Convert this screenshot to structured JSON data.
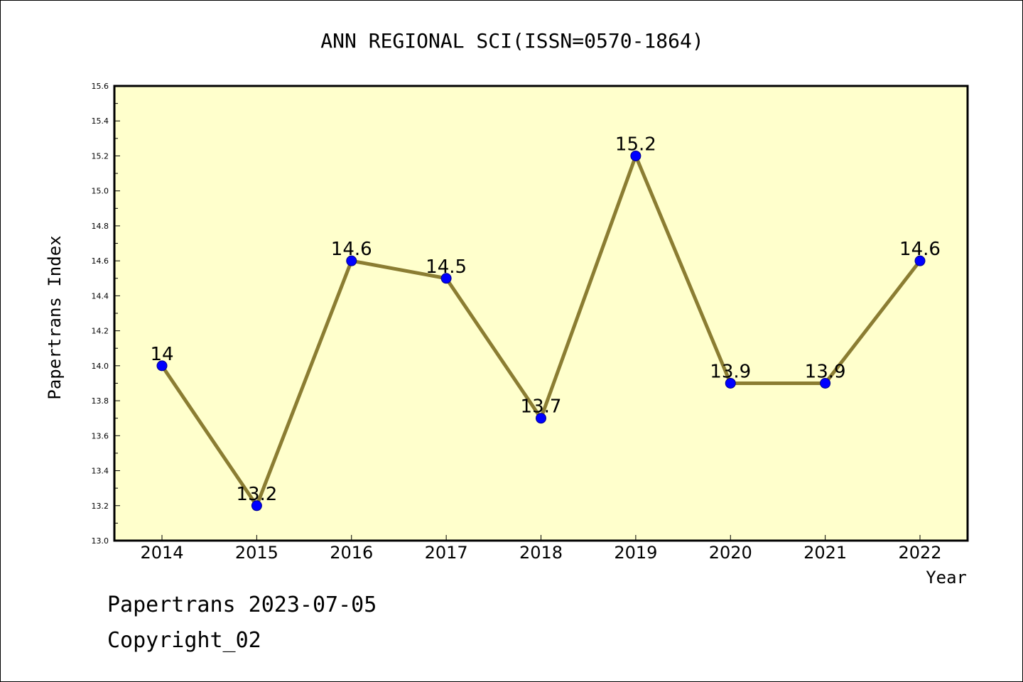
{
  "chart_data": {
    "type": "line",
    "title": "ANN REGIONAL SCI(ISSN=0570-1864)",
    "xlabel": "Year",
    "ylabel": "Papertrans Index",
    "categories": [
      "2014",
      "2015",
      "2016",
      "2017",
      "2018",
      "2019",
      "2020",
      "2021",
      "2022"
    ],
    "values": [
      14,
      13.2,
      14.6,
      14.5,
      13.7,
      15.2,
      13.9,
      13.9,
      14.6
    ],
    "data_labels": [
      "14",
      "13.2",
      "14.6",
      "14.5",
      "13.7",
      "15.2",
      "13.9",
      "13.9",
      "14.6"
    ],
    "ylim": [
      13.0,
      15.6
    ],
    "yticks": [
      "13.0",
      "13.2",
      "13.4",
      "13.6",
      "13.8",
      "14.0",
      "14.2",
      "14.4",
      "14.6",
      "14.8",
      "15.0",
      "15.2",
      "15.4",
      "15.6"
    ],
    "grid": false,
    "colors": {
      "plot_background": "#ffffcc",
      "line": "#8b7d32",
      "marker": "#0000ff"
    }
  },
  "footer": {
    "line1": "Papertrans 2023-07-05",
    "line2": "Copyright_02"
  }
}
